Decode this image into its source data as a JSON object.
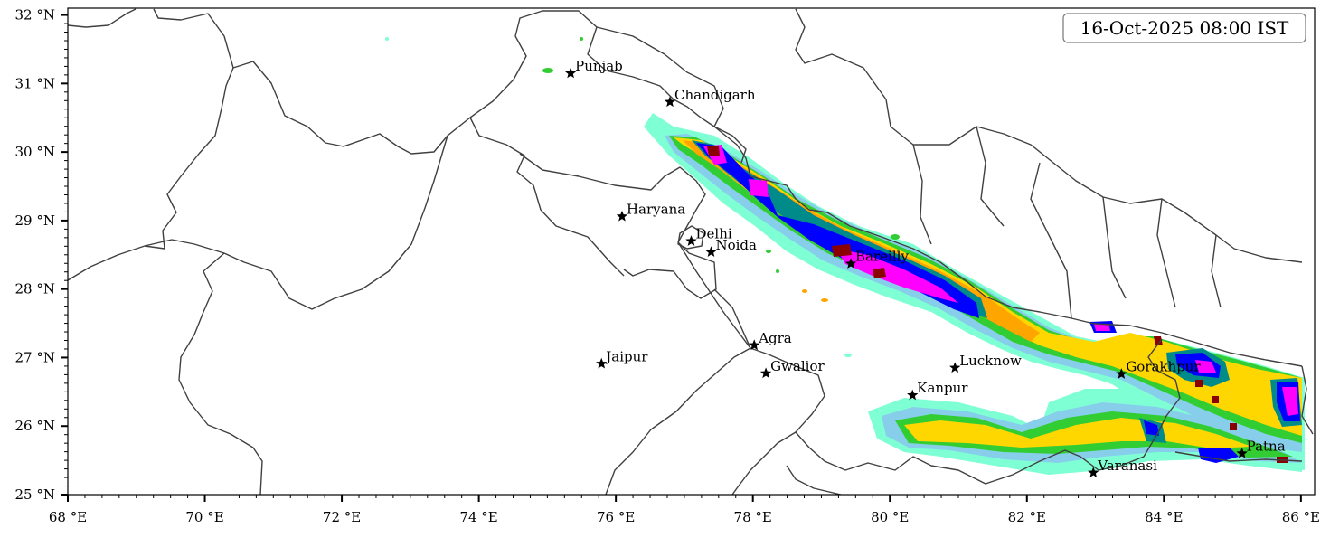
{
  "map": {
    "timestamp": "16-Oct-2025 08:00 IST",
    "extent": {
      "lon": [
        68,
        86.2
      ],
      "lat": [
        25,
        32.1
      ]
    },
    "lon_ticks": [
      {
        "value": 68,
        "label": "68 °E"
      },
      {
        "value": 70,
        "label": "70 °E"
      },
      {
        "value": 72,
        "label": "72 °E"
      },
      {
        "value": 74,
        "label": "74 °E"
      },
      {
        "value": 76,
        "label": "76 °E"
      },
      {
        "value": 78,
        "label": "78 °E"
      },
      {
        "value": 80,
        "label": "80 °E"
      },
      {
        "value": 82,
        "label": "82 °E"
      },
      {
        "value": 84,
        "label": "84 °E"
      },
      {
        "value": 86,
        "label": "86 °E"
      }
    ],
    "lat_ticks": [
      {
        "value": 32,
        "label": "32 °N"
      },
      {
        "value": 31,
        "label": "31 °N"
      },
      {
        "value": 30,
        "label": "30 °N"
      },
      {
        "value": 29,
        "label": "29 °N"
      },
      {
        "value": 28,
        "label": "28 °N"
      },
      {
        "value": 27,
        "label": "27 °N"
      },
      {
        "value": 26,
        "label": "26 °N"
      },
      {
        "value": 25,
        "label": "25 °N"
      }
    ],
    "cities": [
      {
        "name": "Punjab",
        "lon": 75.34,
        "lat": 31.15
      },
      {
        "name": "Chandigarh",
        "lon": 76.79,
        "lat": 30.73
      },
      {
        "name": "Haryana",
        "lon": 76.09,
        "lat": 29.06
      },
      {
        "name": "Delhi",
        "lon": 77.1,
        "lat": 28.7
      },
      {
        "name": "Noida",
        "lon": 77.39,
        "lat": 28.54
      },
      {
        "name": "Bareilly",
        "lon": 79.43,
        "lat": 28.37
      },
      {
        "name": "Agra",
        "lon": 78.02,
        "lat": 27.18
      },
      {
        "name": "Jaipur",
        "lon": 75.79,
        "lat": 26.91
      },
      {
        "name": "Gwalior",
        "lon": 78.19,
        "lat": 26.77
      },
      {
        "name": "Lucknow",
        "lon": 80.95,
        "lat": 26.85
      },
      {
        "name": "Kanpur",
        "lon": 80.33,
        "lat": 26.45
      },
      {
        "name": "Gorakhpur",
        "lon": 83.38,
        "lat": 26.76
      },
      {
        "name": "Varanasi",
        "lon": 82.97,
        "lat": 25.32
      },
      {
        "name": "Patna",
        "lon": 85.14,
        "lat": 25.6
      }
    ],
    "colors": {
      "level1": "#7fffd4",
      "level2": "#87ceeb",
      "level3": "#32cd32",
      "level4": "#ffd700",
      "level5": "#ffa500",
      "level6": "#008b8b",
      "level7": "#0000ff",
      "level8": "#ff00ff",
      "level9": "#8b0000",
      "boundary": "#404040"
    }
  }
}
